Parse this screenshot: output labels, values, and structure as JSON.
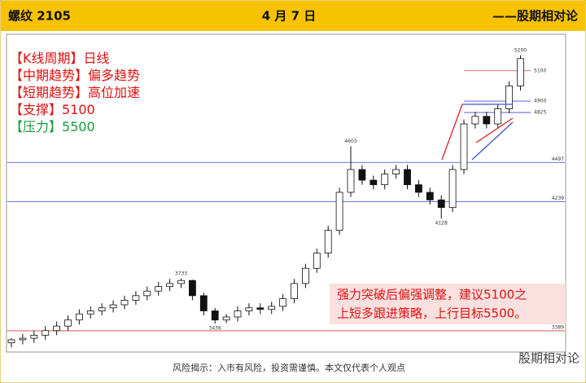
{
  "header": {
    "left": "螺纹 2105",
    "center": "4 月 7 日",
    "right": "——股期相对论"
  },
  "info": [
    {
      "label": "【K线周期】",
      "text": "日线"
    },
    {
      "label": "【中期趋势】",
      "text": "偏多趋势"
    },
    {
      "label": "【短期趋势】",
      "text": "高位加速"
    },
    {
      "label": "【支撑】",
      "text": "5100"
    },
    {
      "label": "【压力】",
      "text": "5500"
    }
  ],
  "note": [
    "强力突破后偏强调整，建议5100之",
    "上短多跟进策略，上行目标5500。"
  ],
  "footer": "风险揭示：入市有风险，投资需谨慎。本文仅代表个人观点",
  "watermark": "股期相对论",
  "chart_data": {
    "type": "candlestick",
    "ylim": [
      3260,
      5340
    ],
    "open": [
      3310,
      3330,
      3340,
      3360,
      3390,
      3420,
      3460,
      3500,
      3520,
      3540,
      3560,
      3590,
      3620,
      3650,
      3680,
      3700,
      3720,
      3620,
      3520,
      3460,
      3480,
      3520,
      3540,
      3530,
      3550,
      3600,
      3700,
      3800,
      3900,
      4050,
      4300,
      4450,
      4380,
      4350,
      4420,
      4450,
      4350,
      4300,
      4250,
      4200,
      4450,
      4750,
      4800,
      4750,
      4850,
      5000
    ],
    "high": [
      3340,
      3370,
      3390,
      3420,
      3450,
      3490,
      3530,
      3550,
      3570,
      3590,
      3620,
      3650,
      3680,
      3710,
      3730,
      3733,
      3725,
      3640,
      3540,
      3500,
      3550,
      3570,
      3570,
      3580,
      3630,
      3730,
      3830,
      3930,
      4080,
      4330,
      4603,
      4480,
      4410,
      4450,
      4480,
      4480,
      4380,
      4330,
      4280,
      4480,
      4780,
      4830,
      4830,
      4880,
      5030,
      5200
    ],
    "low": [
      3280,
      3300,
      3310,
      3330,
      3360,
      3390,
      3430,
      3470,
      3490,
      3510,
      3530,
      3560,
      3590,
      3620,
      3650,
      3670,
      3590,
      3490,
      3436,
      3440,
      3450,
      3490,
      3500,
      3500,
      3520,
      3570,
      3670,
      3770,
      3870,
      4020,
      4270,
      4350,
      4320,
      4320,
      4390,
      4320,
      4270,
      4220,
      4128,
      4170,
      4420,
      4720,
      4720,
      4720,
      4820,
      4970
    ],
    "close": [
      3330,
      3340,
      3360,
      3390,
      3420,
      3460,
      3500,
      3520,
      3540,
      3560,
      3590,
      3620,
      3650,
      3680,
      3700,
      3720,
      3620,
      3520,
      3460,
      3480,
      3520,
      3540,
      3530,
      3550,
      3600,
      3700,
      3800,
      3900,
      4050,
      4300,
      4450,
      4380,
      4350,
      4420,
      4450,
      4350,
      4300,
      4250,
      4200,
      4450,
      4750,
      4800,
      4750,
      4850,
      5000,
      5180
    ],
    "annotations": [
      {
        "index": 15,
        "value": 3733
      },
      {
        "index": 18,
        "value": 3436
      },
      {
        "index": 30,
        "value": 4603
      },
      {
        "index": 38,
        "value": 4128
      },
      {
        "index": 45,
        "value": 5200
      }
    ],
    "levels": [
      {
        "value": 4497,
        "color": "#3b4bd0"
      },
      {
        "value": 4239,
        "color": "#3b4bd0"
      },
      {
        "value": 3389,
        "color": "#e04040"
      }
    ],
    "short_levels": [
      {
        "value": 5100,
        "color": "#e04040"
      },
      {
        "value": 4900,
        "color": "#3b4bd0"
      },
      {
        "value": 4825,
        "color": "#3b4bd0"
      }
    ]
  }
}
